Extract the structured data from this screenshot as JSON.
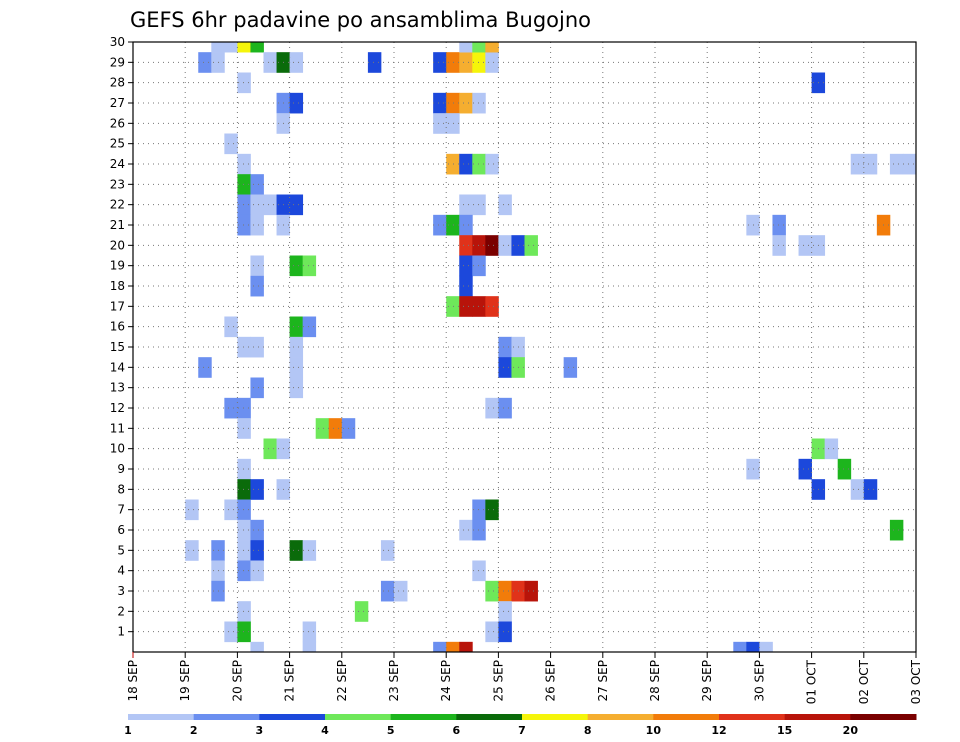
{
  "chart_data": {
    "type": "heatmap",
    "title": "GEFS 6hr padavine po ansamblima Bugojno",
    "y_ticks": [
      "1",
      "2",
      "3",
      "4",
      "5",
      "6",
      "7",
      "8",
      "9",
      "10",
      "11",
      "12",
      "13",
      "14",
      "15",
      "16",
      "17",
      "18",
      "19",
      "20",
      "21",
      "22",
      "23",
      "24",
      "25",
      "26",
      "27",
      "28",
      "29",
      "30"
    ],
    "ylim": [
      0,
      30
    ],
    "x_ticks": [
      "18 SEP",
      "19 SEP",
      "20 SEP",
      "21 SEP",
      "22 SEP",
      "23 SEP",
      "24 SEP",
      "25 SEP",
      "26 SEP",
      "27 SEP",
      "28 SEP",
      "29 SEP",
      "30 SEP",
      "01 OCT",
      "02 OCT",
      "03 OCT"
    ],
    "grid": true,
    "colorbar": {
      "labels": [
        "1",
        "2",
        "3",
        "4",
        "5",
        "6",
        "7",
        "8",
        "10",
        "12",
        "15",
        "20"
      ],
      "colors": [
        "#b3c6f5",
        "#6b8ff0",
        "#1c48db",
        "#6ee85a",
        "#1db51d",
        "#0a6b0a",
        "#f5f50a",
        "#f5ae30",
        "#f27c0a",
        "#e0321a",
        "#b8140a",
        "#7a0000"
      ]
    },
    "cells": [
      {
        "day": "19 SEP",
        "h": 6,
        "member": 29,
        "color": "#6b8ff0"
      },
      {
        "day": "19 SEP",
        "h": 12,
        "member": 29,
        "color": "#b3c6f5"
      },
      {
        "day": "19 SEP",
        "h": 12,
        "member": 30,
        "color": "#b3c6f5"
      },
      {
        "day": "19 SEP",
        "h": 18,
        "member": 30,
        "color": "#b3c6f5"
      },
      {
        "day": "20 SEP",
        "h": 0,
        "member": 30,
        "color": "#f5f50a"
      },
      {
        "day": "20 SEP",
        "h": 6,
        "member": 30,
        "color": "#1db51d"
      },
      {
        "day": "20 SEP",
        "h": 12,
        "member": 29,
        "color": "#b3c6f5"
      },
      {
        "day": "20 SEP",
        "h": 18,
        "member": 29,
        "color": "#0a6b0a"
      },
      {
        "day": "21 SEP",
        "h": 0,
        "member": 29,
        "color": "#b3c6f5"
      },
      {
        "day": "22 SEP",
        "h": 12,
        "member": 29,
        "color": "#1c48db"
      },
      {
        "day": "23 SEP",
        "h": 18,
        "member": 29,
        "color": "#1c48db"
      },
      {
        "day": "24 SEP",
        "h": 0,
        "member": 29,
        "color": "#f27c0a"
      },
      {
        "day": "24 SEP",
        "h": 6,
        "member": 29,
        "color": "#f5ae30"
      },
      {
        "day": "24 SEP",
        "h": 12,
        "member": 29,
        "color": "#f5f50a"
      },
      {
        "day": "24 SEP",
        "h": 18,
        "member": 29,
        "color": "#b3c6f5"
      },
      {
        "day": "24 SEP",
        "h": 6,
        "member": 30,
        "color": "#b3c6f5"
      },
      {
        "day": "24 SEP",
        "h": 12,
        "member": 30,
        "color": "#6ee85a"
      },
      {
        "day": "24 SEP",
        "h": 18,
        "member": 30,
        "color": "#f5ae30"
      },
      {
        "day": "20 SEP",
        "h": 0,
        "member": 28,
        "color": "#b3c6f5"
      },
      {
        "day": "01 OCT",
        "h": 0,
        "member": 28,
        "color": "#1c48db"
      },
      {
        "day": "20 SEP",
        "h": 18,
        "member": 27,
        "color": "#6b8ff0"
      },
      {
        "day": "21 SEP",
        "h": 0,
        "member": 27,
        "color": "#1c48db"
      },
      {
        "day": "23 SEP",
        "h": 18,
        "member": 27,
        "color": "#1c48db"
      },
      {
        "day": "24 SEP",
        "h": 0,
        "member": 27,
        "color": "#f27c0a"
      },
      {
        "day": "24 SEP",
        "h": 6,
        "member": 27,
        "color": "#f5ae30"
      },
      {
        "day": "24 SEP",
        "h": 12,
        "member": 27,
        "color": "#b3c6f5"
      },
      {
        "day": "20 SEP",
        "h": 18,
        "member": 26,
        "color": "#b3c6f5"
      },
      {
        "day": "23 SEP",
        "h": 18,
        "member": 26,
        "color": "#b3c6f5"
      },
      {
        "day": "24 SEP",
        "h": 0,
        "member": 26,
        "color": "#b3c6f5"
      },
      {
        "day": "19 SEP",
        "h": 18,
        "member": 25,
        "color": "#b3c6f5"
      },
      {
        "day": "20 SEP",
        "h": 0,
        "member": 24,
        "color": "#b3c6f5"
      },
      {
        "day": "24 SEP",
        "h": 0,
        "member": 24,
        "color": "#f5ae30"
      },
      {
        "day": "24 SEP",
        "h": 6,
        "member": 24,
        "color": "#1c48db"
      },
      {
        "day": "24 SEP",
        "h": 12,
        "member": 24,
        "color": "#6ee85a"
      },
      {
        "day": "24 SEP",
        "h": 18,
        "member": 24,
        "color": "#b3c6f5"
      },
      {
        "day": "01 OCT",
        "h": 18,
        "member": 24,
        "color": "#b3c6f5"
      },
      {
        "day": "02 OCT",
        "h": 0,
        "member": 24,
        "color": "#b3c6f5"
      },
      {
        "day": "02 OCT",
        "h": 12,
        "member": 24,
        "color": "#b3c6f5"
      },
      {
        "day": "02 OCT",
        "h": 18,
        "member": 24,
        "color": "#b3c6f5"
      },
      {
        "day": "20 SEP",
        "h": 0,
        "member": 23,
        "color": "#1db51d"
      },
      {
        "day": "20 SEP",
        "h": 6,
        "member": 23,
        "color": "#6b8ff0"
      },
      {
        "day": "20 SEP",
        "h": 0,
        "member": 22,
        "color": "#6b8ff0"
      },
      {
        "day": "20 SEP",
        "h": 6,
        "member": 22,
        "color": "#b3c6f5"
      },
      {
        "day": "20 SEP",
        "h": 12,
        "member": 22,
        "color": "#b3c6f5"
      },
      {
        "day": "20 SEP",
        "h": 18,
        "member": 22,
        "color": "#1c48db"
      },
      {
        "day": "21 SEP",
        "h": 0,
        "member": 22,
        "color": "#1c48db"
      },
      {
        "day": "24 SEP",
        "h": 6,
        "member": 22,
        "color": "#b3c6f5"
      },
      {
        "day": "24 SEP",
        "h": 12,
        "member": 22,
        "color": "#b3c6f5"
      },
      {
        "day": "25 SEP",
        "h": 0,
        "member": 22,
        "color": "#b3c6f5"
      },
      {
        "day": "20 SEP",
        "h": 0,
        "member": 21,
        "color": "#6b8ff0"
      },
      {
        "day": "20 SEP",
        "h": 6,
        "member": 21,
        "color": "#b3c6f5"
      },
      {
        "day": "20 SEP",
        "h": 18,
        "member": 21,
        "color": "#b3c6f5"
      },
      {
        "day": "23 SEP",
        "h": 18,
        "member": 21,
        "color": "#6b8ff0"
      },
      {
        "day": "24 SEP",
        "h": 0,
        "member": 21,
        "color": "#1db51d"
      },
      {
        "day": "24 SEP",
        "h": 6,
        "member": 21,
        "color": "#6b8ff0"
      },
      {
        "day": "29 SEP",
        "h": 18,
        "member": 21,
        "color": "#b3c6f5"
      },
      {
        "day": "30 SEP",
        "h": 6,
        "member": 21,
        "color": "#6b8ff0"
      },
      {
        "day": "02 OCT",
        "h": 6,
        "member": 21,
        "color": "#f27c0a"
      },
      {
        "day": "24 SEP",
        "h": 6,
        "member": 20,
        "color": "#e0321a"
      },
      {
        "day": "24 SEP",
        "h": 12,
        "member": 20,
        "color": "#b8140a"
      },
      {
        "day": "24 SEP",
        "h": 18,
        "member": 20,
        "color": "#7a0000"
      },
      {
        "day": "25 SEP",
        "h": 0,
        "member": 20,
        "color": "#b3c6f5"
      },
      {
        "day": "25 SEP",
        "h": 6,
        "member": 20,
        "color": "#1c48db"
      },
      {
        "day": "25 SEP",
        "h": 12,
        "member": 20,
        "color": "#6ee85a"
      },
      {
        "day": "30 SEP",
        "h": 6,
        "member": 20,
        "color": "#b3c6f5"
      },
      {
        "day": "30 SEP",
        "h": 18,
        "member": 20,
        "color": "#b3c6f5"
      },
      {
        "day": "01 OCT",
        "h": 0,
        "member": 20,
        "color": "#b3c6f5"
      },
      {
        "day": "20 SEP",
        "h": 6,
        "member": 19,
        "color": "#b3c6f5"
      },
      {
        "day": "21 SEP",
        "h": 0,
        "member": 19,
        "color": "#1db51d"
      },
      {
        "day": "21 SEP",
        "h": 6,
        "member": 19,
        "color": "#6ee85a"
      },
      {
        "day": "24 SEP",
        "h": 6,
        "member": 19,
        "color": "#1c48db"
      },
      {
        "day": "24 SEP",
        "h": 12,
        "member": 19,
        "color": "#6b8ff0"
      },
      {
        "day": "20 SEP",
        "h": 6,
        "member": 18,
        "color": "#6b8ff0"
      },
      {
        "day": "24 SEP",
        "h": 6,
        "member": 18,
        "color": "#1c48db"
      },
      {
        "day": "24 SEP",
        "h": 0,
        "member": 17,
        "color": "#6ee85a"
      },
      {
        "day": "24 SEP",
        "h": 6,
        "member": 17,
        "color": "#b8140a"
      },
      {
        "day": "24 SEP",
        "h": 12,
        "member": 17,
        "color": "#b8140a"
      },
      {
        "day": "24 SEP",
        "h": 18,
        "member": 17,
        "color": "#e0321a"
      },
      {
        "day": "19 SEP",
        "h": 18,
        "member": 16,
        "color": "#b3c6f5"
      },
      {
        "day": "21 SEP",
        "h": 0,
        "member": 16,
        "color": "#1db51d"
      },
      {
        "day": "21 SEP",
        "h": 6,
        "member": 16,
        "color": "#6b8ff0"
      },
      {
        "day": "20 SEP",
        "h": 0,
        "member": 15,
        "color": "#b3c6f5"
      },
      {
        "day": "20 SEP",
        "h": 6,
        "member": 15,
        "color": "#b3c6f5"
      },
      {
        "day": "21 SEP",
        "h": 0,
        "member": 15,
        "color": "#b3c6f5"
      },
      {
        "day": "25 SEP",
        "h": 0,
        "member": 15,
        "color": "#6b8ff0"
      },
      {
        "day": "25 SEP",
        "h": 6,
        "member": 15,
        "color": "#b3c6f5"
      },
      {
        "day": "19 SEP",
        "h": 6,
        "member": 14,
        "color": "#6b8ff0"
      },
      {
        "day": "21 SEP",
        "h": 0,
        "member": 14,
        "color": "#b3c6f5"
      },
      {
        "day": "25 SEP",
        "h": 0,
        "member": 14,
        "color": "#1c48db"
      },
      {
        "day": "25 SEP",
        "h": 6,
        "member": 14,
        "color": "#6ee85a"
      },
      {
        "day": "26 SEP",
        "h": 6,
        "member": 14,
        "color": "#6b8ff0"
      },
      {
        "day": "20 SEP",
        "h": 6,
        "member": 13,
        "color": "#6b8ff0"
      },
      {
        "day": "21 SEP",
        "h": 0,
        "member": 13,
        "color": "#b3c6f5"
      },
      {
        "day": "19 SEP",
        "h": 18,
        "member": 12,
        "color": "#6b8ff0"
      },
      {
        "day": "20 SEP",
        "h": 0,
        "member": 12,
        "color": "#6b8ff0"
      },
      {
        "day": "24 SEP",
        "h": 18,
        "member": 12,
        "color": "#b3c6f5"
      },
      {
        "day": "25 SEP",
        "h": 0,
        "member": 12,
        "color": "#6b8ff0"
      },
      {
        "day": "20 SEP",
        "h": 0,
        "member": 11,
        "color": "#b3c6f5"
      },
      {
        "day": "21 SEP",
        "h": 12,
        "member": 11,
        "color": "#6ee85a"
      },
      {
        "day": "21 SEP",
        "h": 18,
        "member": 11,
        "color": "#f27c0a"
      },
      {
        "day": "22 SEP",
        "h": 0,
        "member": 11,
        "color": "#6b8ff0"
      },
      {
        "day": "20 SEP",
        "h": 12,
        "member": 10,
        "color": "#6ee85a"
      },
      {
        "day": "20 SEP",
        "h": 18,
        "member": 10,
        "color": "#b3c6f5"
      },
      {
        "day": "01 OCT",
        "h": 0,
        "member": 10,
        "color": "#6ee85a"
      },
      {
        "day": "01 OCT",
        "h": 6,
        "member": 10,
        "color": "#b3c6f5"
      },
      {
        "day": "20 SEP",
        "h": 0,
        "member": 9,
        "color": "#b3c6f5"
      },
      {
        "day": "29 SEP",
        "h": 18,
        "member": 9,
        "color": "#b3c6f5"
      },
      {
        "day": "30 SEP",
        "h": 18,
        "member": 9,
        "color": "#1c48db"
      },
      {
        "day": "01 OCT",
        "h": 12,
        "member": 9,
        "color": "#1db51d"
      },
      {
        "day": "20 SEP",
        "h": 0,
        "member": 8,
        "color": "#0a6b0a"
      },
      {
        "day": "20 SEP",
        "h": 6,
        "member": 8,
        "color": "#1c48db"
      },
      {
        "day": "20 SEP",
        "h": 18,
        "member": 8,
        "color": "#b3c6f5"
      },
      {
        "day": "01 OCT",
        "h": 0,
        "member": 8,
        "color": "#1c48db"
      },
      {
        "day": "01 OCT",
        "h": 18,
        "member": 8,
        "color": "#b3c6f5"
      },
      {
        "day": "02 OCT",
        "h": 0,
        "member": 8,
        "color": "#1c48db"
      },
      {
        "day": "19 SEP",
        "h": 0,
        "member": 7,
        "color": "#b3c6f5"
      },
      {
        "day": "19 SEP",
        "h": 18,
        "member": 7,
        "color": "#b3c6f5"
      },
      {
        "day": "20 SEP",
        "h": 0,
        "member": 7,
        "color": "#6b8ff0"
      },
      {
        "day": "24 SEP",
        "h": 12,
        "member": 7,
        "color": "#6b8ff0"
      },
      {
        "day": "24 SEP",
        "h": 18,
        "member": 7,
        "color": "#0a6b0a"
      },
      {
        "day": "20 SEP",
        "h": 0,
        "member": 6,
        "color": "#b3c6f5"
      },
      {
        "day": "20 SEP",
        "h": 6,
        "member": 6,
        "color": "#6b8ff0"
      },
      {
        "day": "24 SEP",
        "h": 6,
        "member": 6,
        "color": "#b3c6f5"
      },
      {
        "day": "24 SEP",
        "h": 12,
        "member": 6,
        "color": "#6b8ff0"
      },
      {
        "day": "02 OCT",
        "h": 12,
        "member": 6,
        "color": "#1db51d"
      },
      {
        "day": "19 SEP",
        "h": 0,
        "member": 5,
        "color": "#b3c6f5"
      },
      {
        "day": "19 SEP",
        "h": 12,
        "member": 5,
        "color": "#6b8ff0"
      },
      {
        "day": "20 SEP",
        "h": 0,
        "member": 5,
        "color": "#b3c6f5"
      },
      {
        "day": "20 SEP",
        "h": 6,
        "member": 5,
        "color": "#1c48db"
      },
      {
        "day": "21 SEP",
        "h": 0,
        "member": 5,
        "color": "#0a6b0a"
      },
      {
        "day": "21 SEP",
        "h": 6,
        "member": 5,
        "color": "#b3c6f5"
      },
      {
        "day": "22 SEP",
        "h": 18,
        "member": 5,
        "color": "#b3c6f5"
      },
      {
        "day": "19 SEP",
        "h": 12,
        "member": 4,
        "color": "#b3c6f5"
      },
      {
        "day": "20 SEP",
        "h": 0,
        "member": 4,
        "color": "#6b8ff0"
      },
      {
        "day": "20 SEP",
        "h": 6,
        "member": 4,
        "color": "#b3c6f5"
      },
      {
        "day": "24 SEP",
        "h": 12,
        "member": 4,
        "color": "#b3c6f5"
      },
      {
        "day": "19 SEP",
        "h": 12,
        "member": 3,
        "color": "#6b8ff0"
      },
      {
        "day": "22 SEP",
        "h": 18,
        "member": 3,
        "color": "#6b8ff0"
      },
      {
        "day": "23 SEP",
        "h": 0,
        "member": 3,
        "color": "#b3c6f5"
      },
      {
        "day": "24 SEP",
        "h": 18,
        "member": 3,
        "color": "#6ee85a"
      },
      {
        "day": "25 SEP",
        "h": 0,
        "member": 3,
        "color": "#f27c0a"
      },
      {
        "day": "25 SEP",
        "h": 6,
        "member": 3,
        "color": "#e0321a"
      },
      {
        "day": "25 SEP",
        "h": 12,
        "member": 3,
        "color": "#b8140a"
      },
      {
        "day": "20 SEP",
        "h": 0,
        "member": 2,
        "color": "#b3c6f5"
      },
      {
        "day": "22 SEP",
        "h": 6,
        "member": 2,
        "color": "#6ee85a"
      },
      {
        "day": "25 SEP",
        "h": 0,
        "member": 2,
        "color": "#b3c6f5"
      },
      {
        "day": "19 SEP",
        "h": 18,
        "member": 1,
        "color": "#b3c6f5"
      },
      {
        "day": "20 SEP",
        "h": 0,
        "member": 1,
        "color": "#1db51d"
      },
      {
        "day": "21 SEP",
        "h": 6,
        "member": 1,
        "color": "#b3c6f5"
      },
      {
        "day": "24 SEP",
        "h": 18,
        "member": 1,
        "color": "#b3c6f5"
      },
      {
        "day": "25 SEP",
        "h": 0,
        "member": 1,
        "color": "#1c48db"
      },
      {
        "day": "20 SEP",
        "h": 6,
        "member": 0,
        "color": "#b3c6f5"
      },
      {
        "day": "21 SEP",
        "h": 6,
        "member": 0,
        "color": "#b3c6f5"
      },
      {
        "day": "23 SEP",
        "h": 18,
        "member": 0,
        "color": "#6b8ff0"
      },
      {
        "day": "24 SEP",
        "h": 0,
        "member": 0,
        "color": "#f27c0a"
      },
      {
        "day": "24 SEP",
        "h": 6,
        "member": 0,
        "color": "#b8140a"
      },
      {
        "day": "29 SEP",
        "h": 12,
        "member": 0,
        "color": "#6b8ff0"
      },
      {
        "day": "29 SEP",
        "h": 18,
        "member": 0,
        "color": "#1c48db"
      },
      {
        "day": "30 SEP",
        "h": 0,
        "member": 0,
        "color": "#b3c6f5"
      }
    ]
  }
}
